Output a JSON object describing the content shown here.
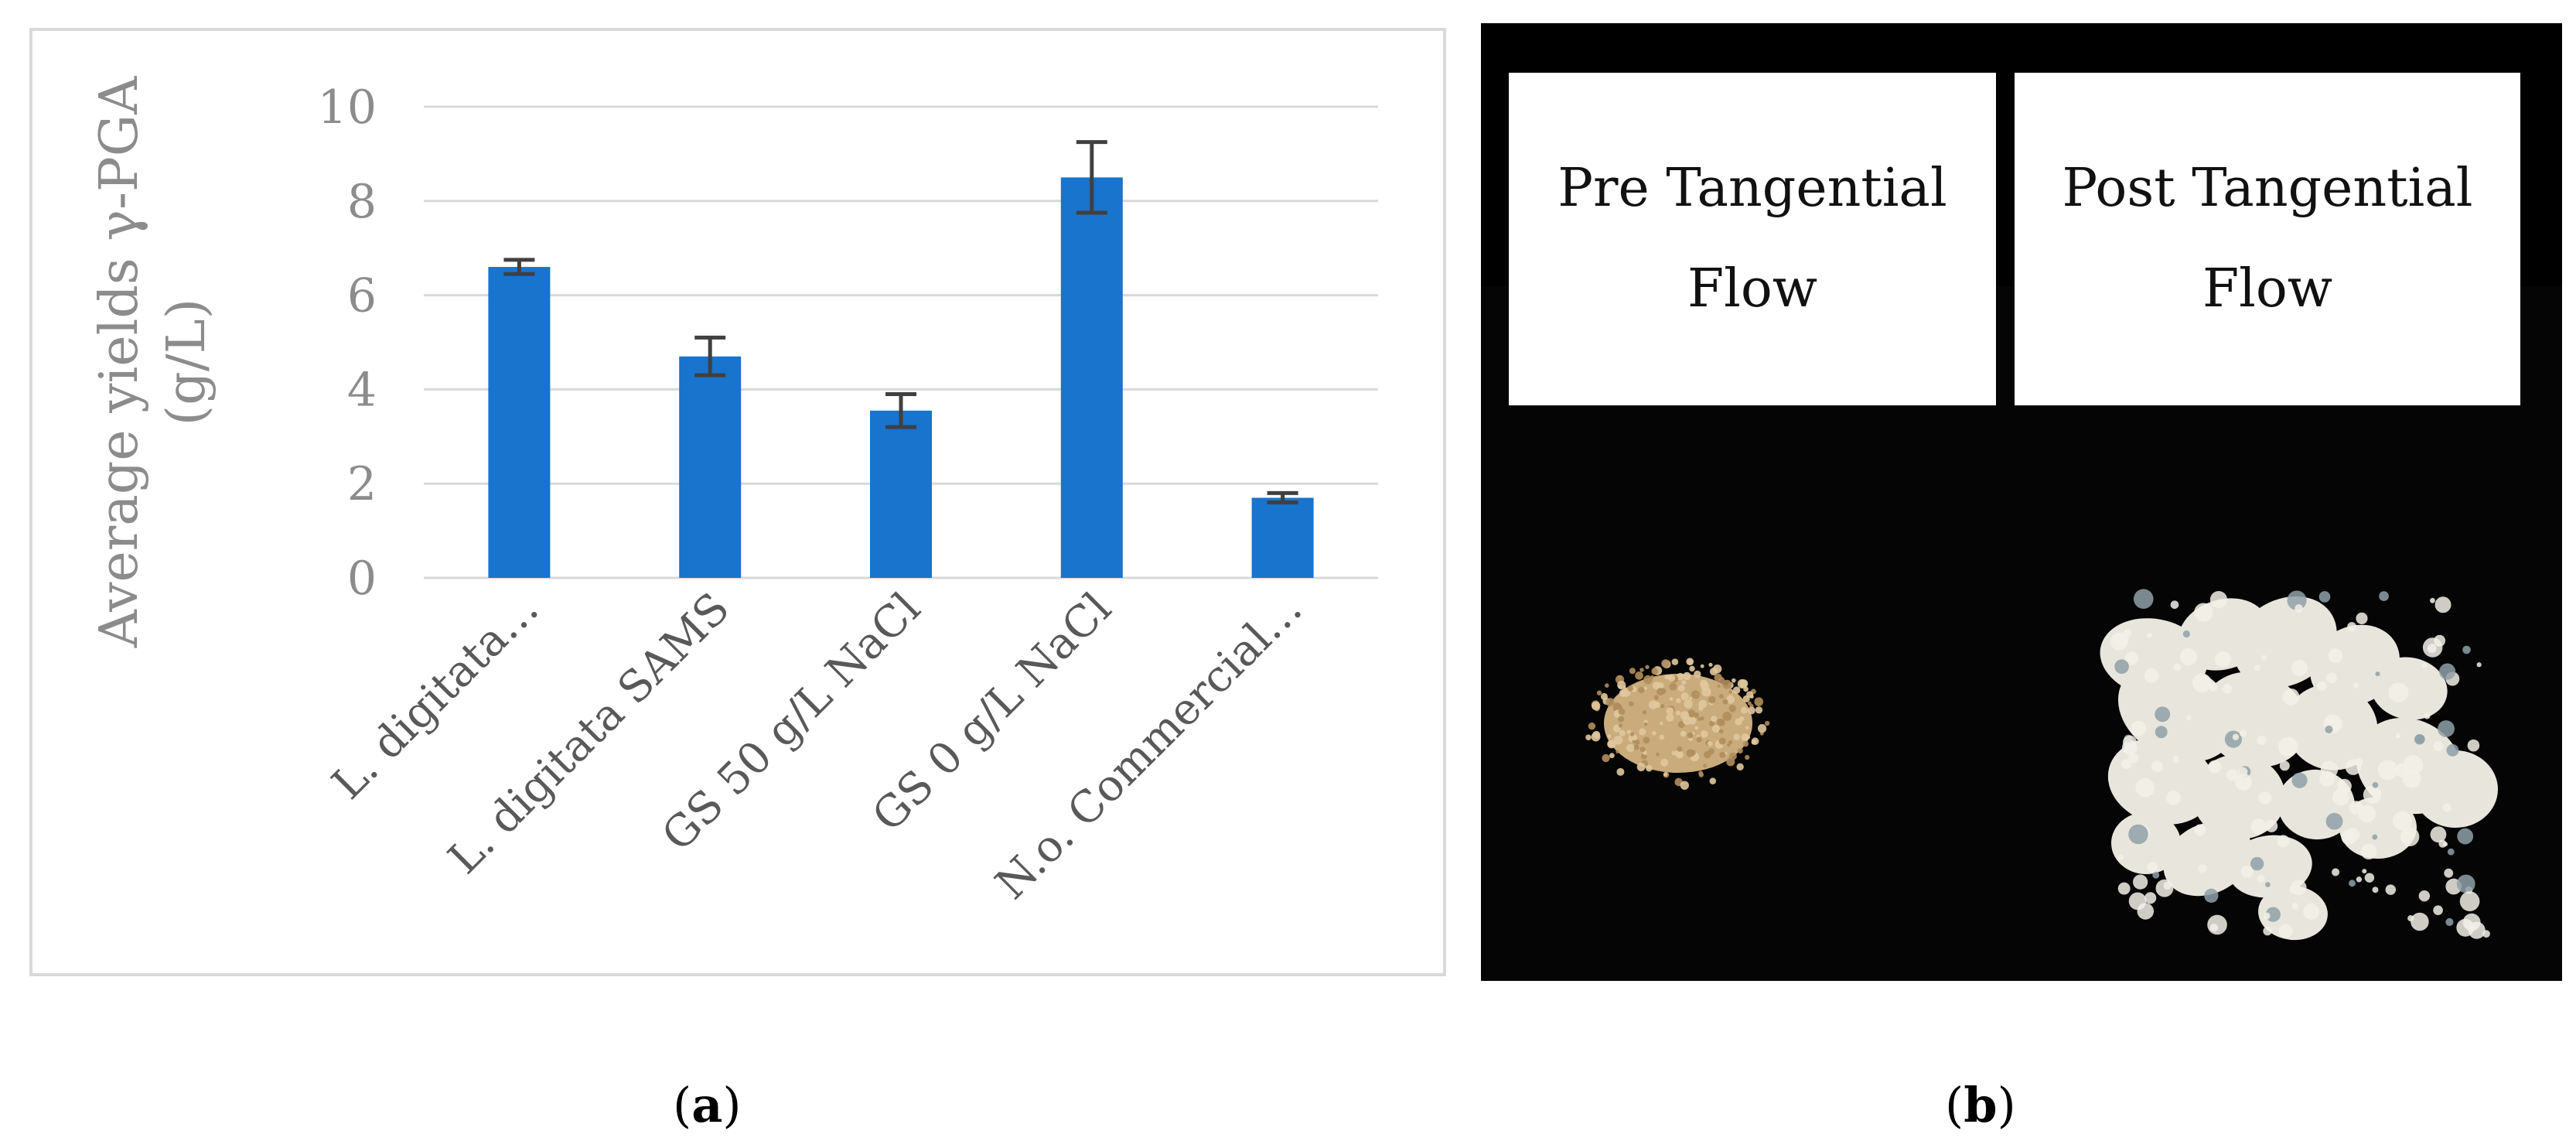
{
  "panel_a": {
    "caption_open": "(",
    "caption_letter": "a",
    "caption_close": ")"
  },
  "panel_b": {
    "caption_open": "(",
    "caption_letter": "b",
    "caption_close": ")",
    "pre_label_line1": "Pre Tangential",
    "pre_label_line2": "Flow",
    "post_label_line1": "Post Tangential",
    "post_label_line2": "Flow",
    "photo_background": "#000000",
    "pre_sample_color": "#c9ab7c",
    "post_sample_color": "#e8e6dc"
  },
  "chart_data": {
    "type": "bar",
    "title": "",
    "xlabel": "",
    "ylabel_line1": "Average yields γ-PGA",
    "ylabel_line2": "(g/L)",
    "ylim": [
      0,
      10
    ],
    "yticks": [
      0,
      2,
      4,
      6,
      8,
      10
    ],
    "grid": true,
    "bar_color": "#1874cd",
    "errorbar_color": "#404040",
    "categories": [
      "L. digitata…",
      "L. digitata SAMS",
      "GS 50 g/L NaCl",
      "GS 0 g/L NaCl",
      "N.o. Commercial…"
    ],
    "values": [
      6.6,
      4.7,
      3.55,
      8.5,
      1.7
    ],
    "errors": [
      0.15,
      0.4,
      0.35,
      0.75,
      0.1
    ]
  }
}
